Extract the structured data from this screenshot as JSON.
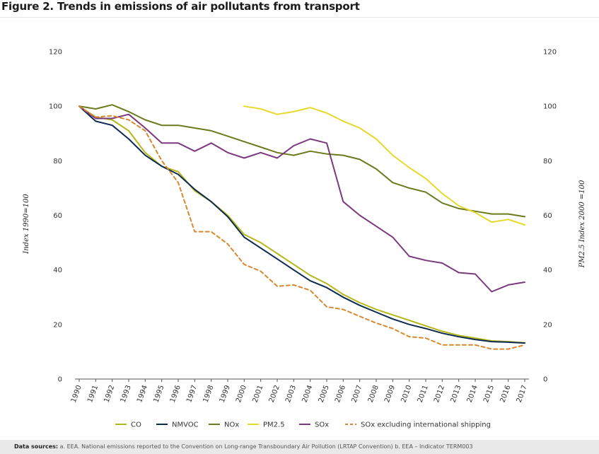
{
  "figure": {
    "title": "Figure 2. Trends in emissions of air pollutants from transport"
  },
  "sources": {
    "label": "Data sources:",
    "text": "a. EEA. National emissions reported to the Convention on Long-range Transboundary Air Pollution (LRTAP Convention)   b. EEA – Indicator TERM003"
  },
  "chart_data": {
    "type": "line",
    "title": "Figure 2. Trends in emissions of air pollutants from transport",
    "ylabel": "Index 1990=100",
    "y2label": "PM2.5 Index 2000 =100",
    "ylim": [
      0,
      120
    ],
    "yticks": [
      0,
      20,
      40,
      60,
      80,
      100,
      120
    ],
    "grid": false,
    "legend_position": "bottom",
    "categories": [
      "1990",
      "1991",
      "1992",
      "1993",
      "1994",
      "1995",
      "1996",
      "1997",
      "1998",
      "1999",
      "2000",
      "2001",
      "2002",
      "2003",
      "2004",
      "2005",
      "2006",
      "2007",
      "2008",
      "2009",
      "2010",
      "2011",
      "2012",
      "2013",
      "2014",
      "2015",
      "2016",
      "2017"
    ],
    "series": [
      {
        "name": "CO",
        "color": "#b5b81a",
        "dash": false,
        "values": [
          100,
          96,
          95,
          91,
          83,
          78,
          76,
          69,
          65,
          60,
          53,
          50,
          46,
          42,
          38,
          35,
          31,
          28,
          25.5,
          23.5,
          21.5,
          19.5,
          17.5,
          16,
          15,
          14,
          13.7,
          13.3
        ]
      },
      {
        "name": "NMVOC",
        "color": "#0d2b52",
        "dash": false,
        "values": [
          100,
          94.5,
          93,
          88,
          82,
          78,
          75,
          69.5,
          65,
          59.5,
          52,
          48,
          44,
          40,
          36,
          33.5,
          30,
          27,
          24.5,
          22,
          20,
          18.5,
          16.8,
          15.5,
          14.5,
          13.7,
          13.5,
          13.2
        ]
      },
      {
        "name": "NOx",
        "color": "#6a7a1e",
        "dash": false,
        "values": [
          100,
          99,
          100.5,
          98,
          95,
          93,
          93,
          92,
          91,
          89,
          87,
          85,
          83,
          82,
          83.5,
          82.5,
          82,
          80.5,
          77,
          72,
          70,
          68.5,
          64.5,
          62.5,
          61.5,
          60.5,
          60.5,
          59.5
        ]
      },
      {
        "name": "PM2.5",
        "color": "#e6d92c",
        "dash": false,
        "values": [
          null,
          null,
          null,
          null,
          null,
          null,
          null,
          null,
          null,
          null,
          100,
          99,
          97,
          98,
          99.5,
          97.5,
          94.5,
          92,
          88,
          82,
          77.5,
          73.5,
          68,
          63.5,
          61,
          57.5,
          58.5,
          56.5
        ]
      },
      {
        "name": "SOx",
        "color": "#7b3a7d",
        "dash": false,
        "values": [
          100,
          95.5,
          95.5,
          97,
          92,
          86.5,
          86.5,
          83.5,
          86.5,
          83,
          81,
          83,
          81,
          85.5,
          88,
          86.5,
          65,
          60,
          56,
          52,
          45,
          43.5,
          42.5,
          39,
          38.5,
          32,
          34.5,
          35.5
        ]
      },
      {
        "name": "SOx excluding international shipping",
        "color": "#d6892e",
        "dash": true,
        "values": [
          100,
          96,
          96.5,
          95,
          91,
          80,
          72,
          54,
          54,
          49.5,
          42,
          39.5,
          34,
          34.5,
          32.5,
          26.5,
          25.5,
          23,
          20.5,
          18.5,
          15.5,
          15,
          12.5,
          12.5,
          12.5,
          11,
          11,
          12.5
        ]
      }
    ]
  }
}
